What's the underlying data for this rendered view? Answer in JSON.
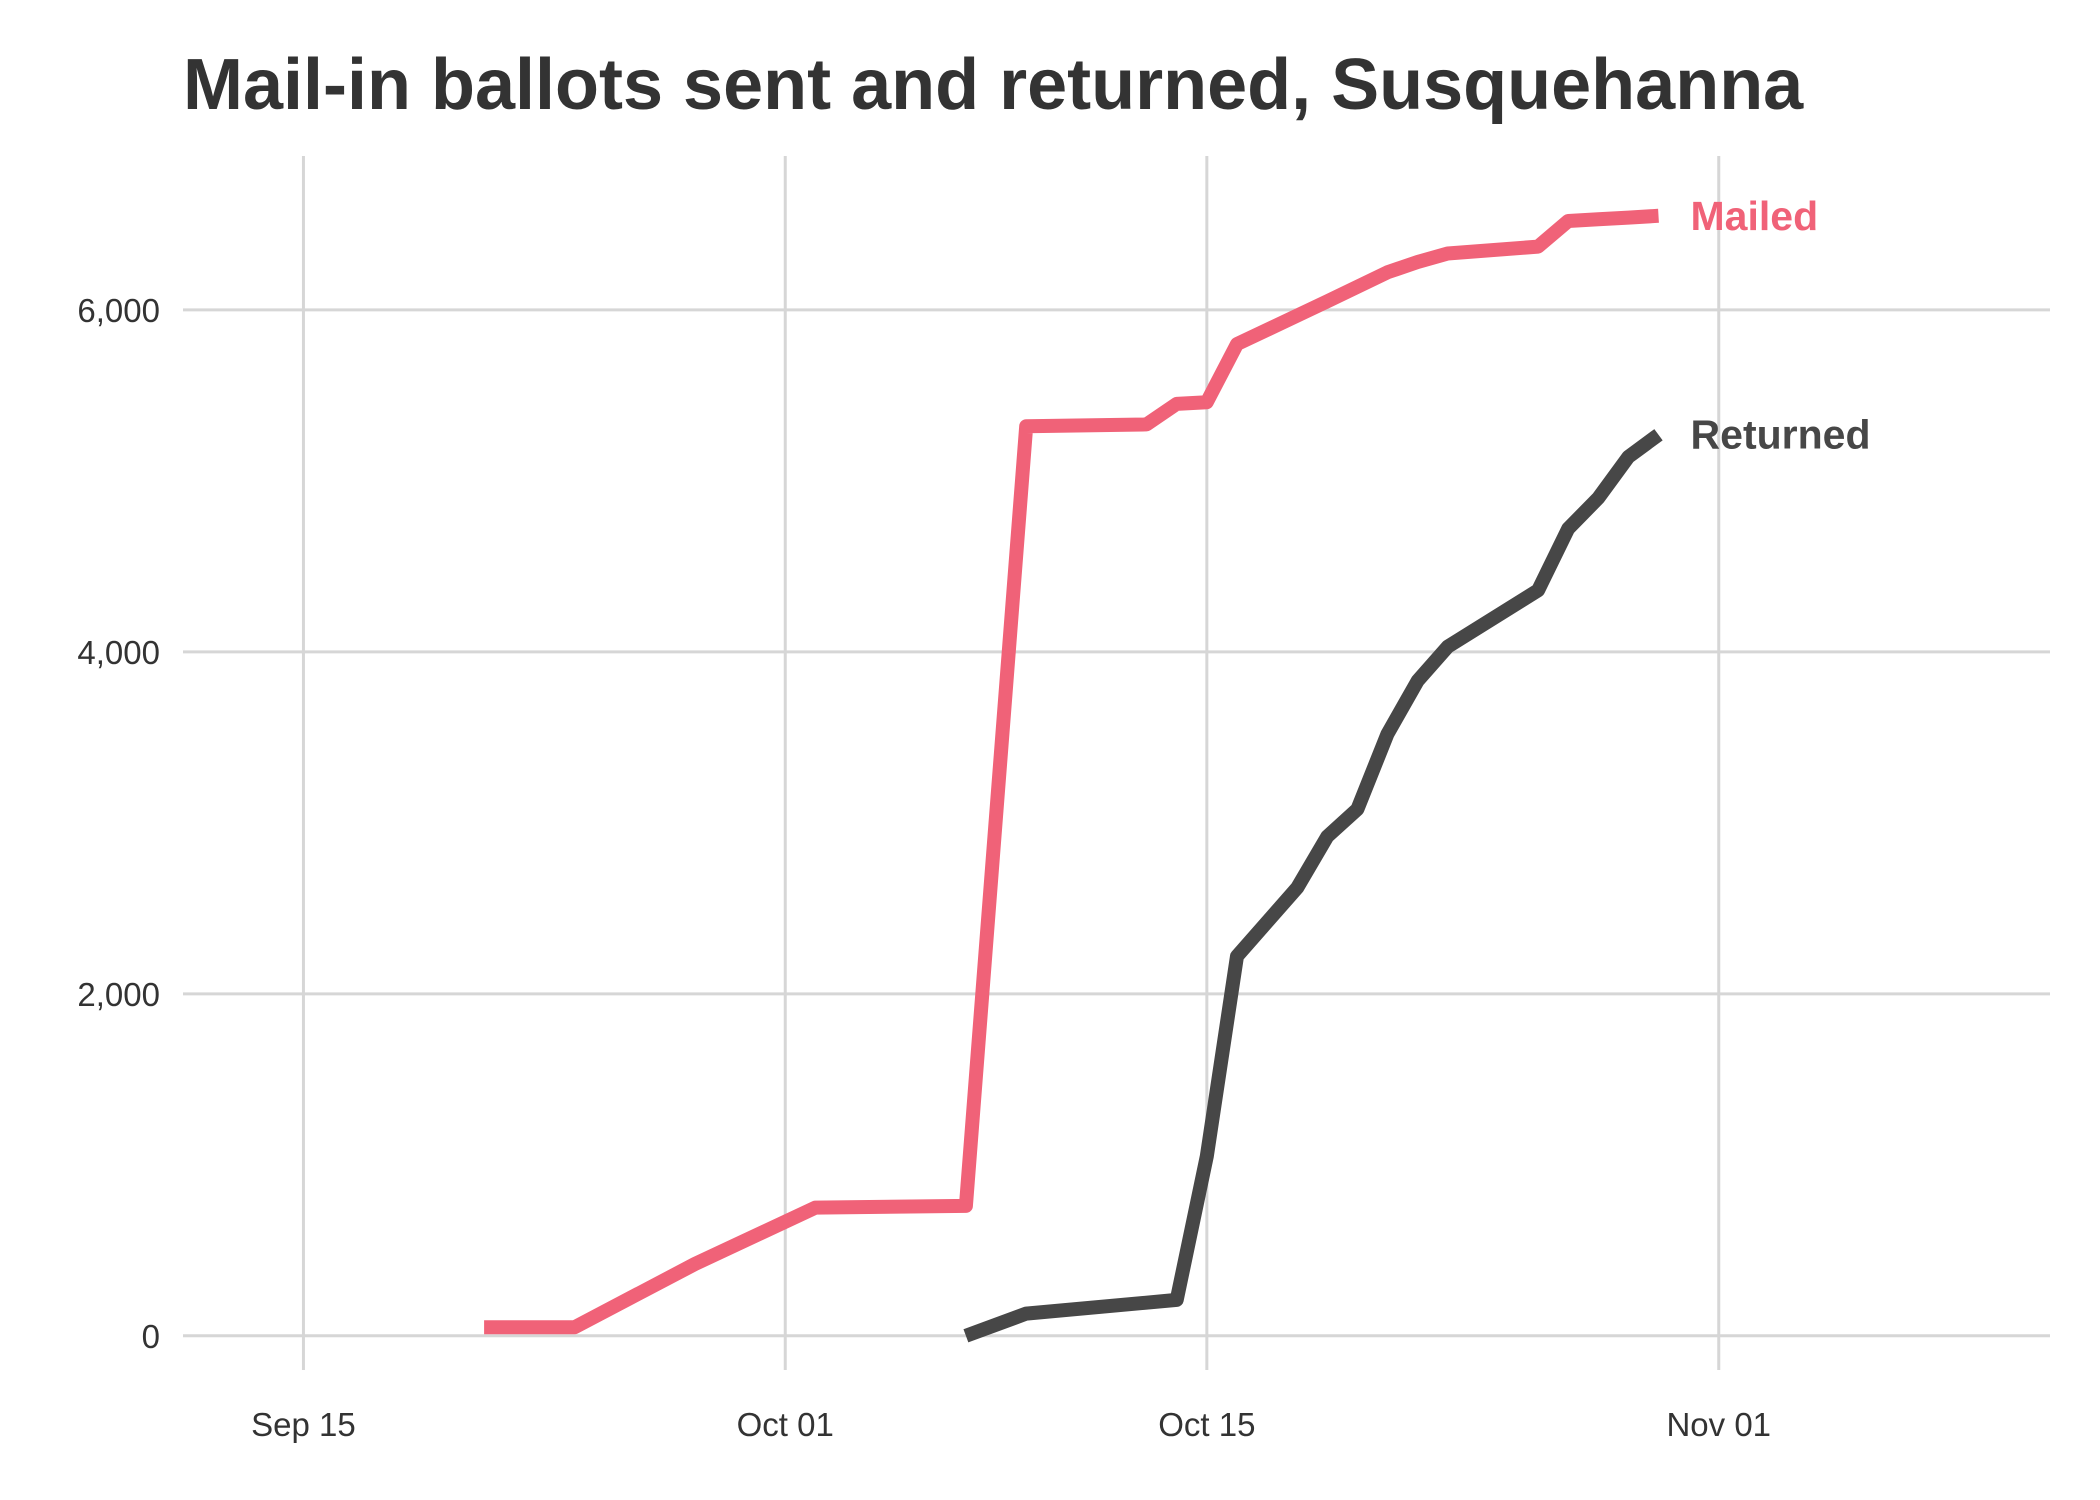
{
  "chart_data": {
    "type": "line",
    "title": "Mail-in ballots sent and returned, Susquehanna",
    "xlabel": "",
    "ylabel": "",
    "x_axis": {
      "type": "date",
      "range": [
        "2020-09-11",
        "2020-11-12"
      ],
      "ticks": [
        {
          "date": "2020-09-15",
          "label": "Sep 15"
        },
        {
          "date": "2020-10-01",
          "label": "Oct 01"
        },
        {
          "date": "2020-10-15",
          "label": "Oct 15"
        },
        {
          "date": "2020-11-01",
          "label": "Nov 01"
        }
      ]
    },
    "y_axis": {
      "range": [
        -200,
        6900
      ],
      "ticks": [
        {
          "value": 0,
          "label": "0"
        },
        {
          "value": 2000,
          "label": "2,000"
        },
        {
          "value": 4000,
          "label": "4,000"
        },
        {
          "value": 6000,
          "label": "6,000"
        }
      ]
    },
    "grid": true,
    "legend": "direct labels at line ends",
    "series": [
      {
        "name": "Mailed",
        "color": "#f06278",
        "points": [
          [
            "2020-09-21",
            50
          ],
          [
            "2020-09-24",
            50
          ],
          [
            "2020-09-28",
            420
          ],
          [
            "2020-10-02",
            750
          ],
          [
            "2020-10-07",
            760
          ],
          [
            "2020-10-09",
            5320
          ],
          [
            "2020-10-13",
            5330
          ],
          [
            "2020-10-14",
            5450
          ],
          [
            "2020-10-15",
            5460
          ],
          [
            "2020-10-16",
            5800
          ],
          [
            "2020-10-19",
            6050
          ],
          [
            "2020-10-21",
            6220
          ],
          [
            "2020-10-22",
            6280
          ],
          [
            "2020-10-23",
            6330
          ],
          [
            "2020-10-26",
            6370
          ],
          [
            "2020-10-27",
            6520
          ],
          [
            "2020-10-28",
            6530
          ],
          [
            "2020-10-29",
            6540
          ],
          [
            "2020-10-30",
            6550
          ]
        ]
      },
      {
        "name": "Returned",
        "color": "#474747",
        "points": [
          [
            "2020-10-07",
            0
          ],
          [
            "2020-10-09",
            130
          ],
          [
            "2020-10-14",
            210
          ],
          [
            "2020-10-15",
            1050
          ],
          [
            "2020-10-16",
            2220
          ],
          [
            "2020-10-18",
            2620
          ],
          [
            "2020-10-19",
            2920
          ],
          [
            "2020-10-20",
            3080
          ],
          [
            "2020-10-21",
            3520
          ],
          [
            "2020-10-22",
            3830
          ],
          [
            "2020-10-23",
            4030
          ],
          [
            "2020-10-26",
            4360
          ],
          [
            "2020-10-27",
            4720
          ],
          [
            "2020-10-28",
            4900
          ],
          [
            "2020-10-29",
            5140
          ],
          [
            "2020-10-30",
            5270
          ]
        ]
      }
    ]
  }
}
